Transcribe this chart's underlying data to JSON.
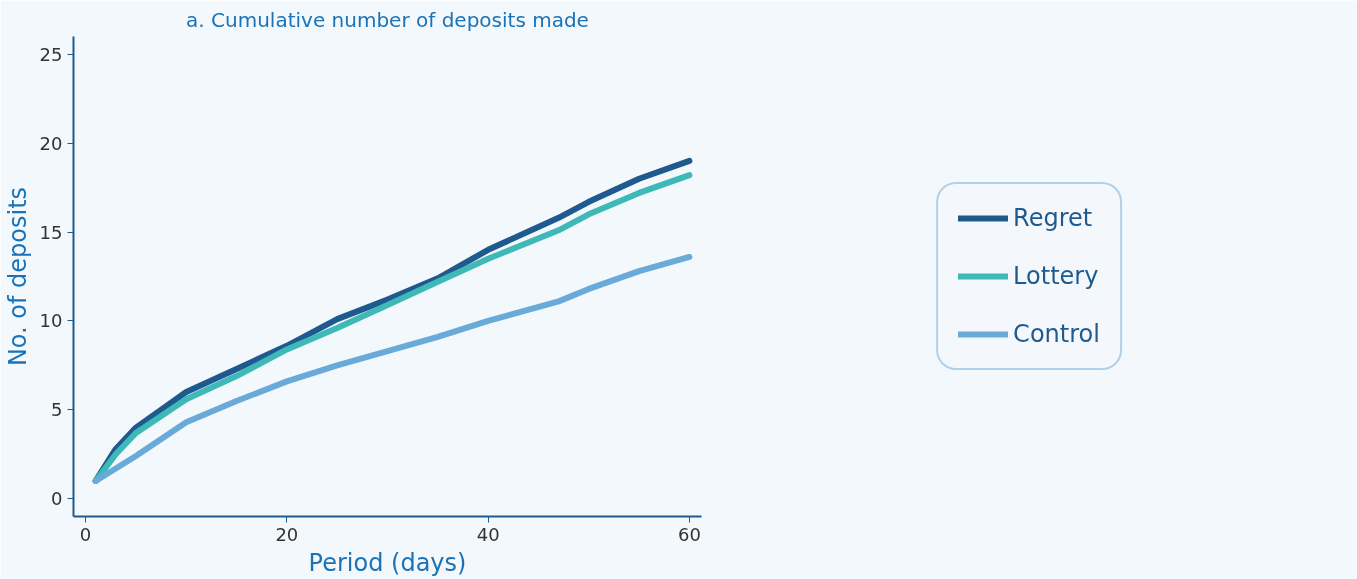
{
  "chart_data": {
    "type": "line",
    "title": "a. Cumulative number of deposits made",
    "xlabel": "Period (days)",
    "ylabel": "No. of deposits",
    "xlim": [
      -1.2,
      61.2
    ],
    "ylim": [
      -1,
      26
    ],
    "xticks": [
      0,
      20,
      40,
      60
    ],
    "yticks": [
      0,
      5,
      10,
      15,
      20,
      25
    ],
    "grid": false,
    "legend": "right",
    "line_style": "solid",
    "marker": "none",
    "series": [
      {
        "name": "Regret",
        "color": "#1f5a8f",
        "x": [
          1,
          3,
          5,
          10,
          15,
          20,
          25,
          30,
          35,
          40,
          47,
          50,
          55,
          60
        ],
        "values": [
          1,
          2.8,
          4.0,
          6.0,
          7.3,
          8.6,
          10.1,
          11.2,
          12.4,
          14.0,
          15.8,
          16.7,
          18.0,
          19.0
        ]
      },
      {
        "name": "Lottery",
        "color": "#3fb8b8",
        "x": [
          1,
          3,
          5,
          10,
          15,
          20,
          25,
          30,
          35,
          40,
          47,
          50,
          55,
          60
        ],
        "values": [
          1,
          2.5,
          3.7,
          5.6,
          6.9,
          8.4,
          9.6,
          10.9,
          12.2,
          13.5,
          15.1,
          16.0,
          17.2,
          18.2
        ]
      },
      {
        "name": "Control",
        "color": "#6aaad8",
        "x": [
          1,
          3,
          5,
          10,
          15,
          20,
          25,
          30,
          35,
          40,
          47,
          50,
          55,
          60
        ],
        "values": [
          1,
          1.7,
          2.4,
          4.3,
          5.5,
          6.6,
          7.5,
          8.3,
          9.1,
          10.0,
          11.1,
          11.8,
          12.8,
          13.6
        ]
      }
    ]
  }
}
